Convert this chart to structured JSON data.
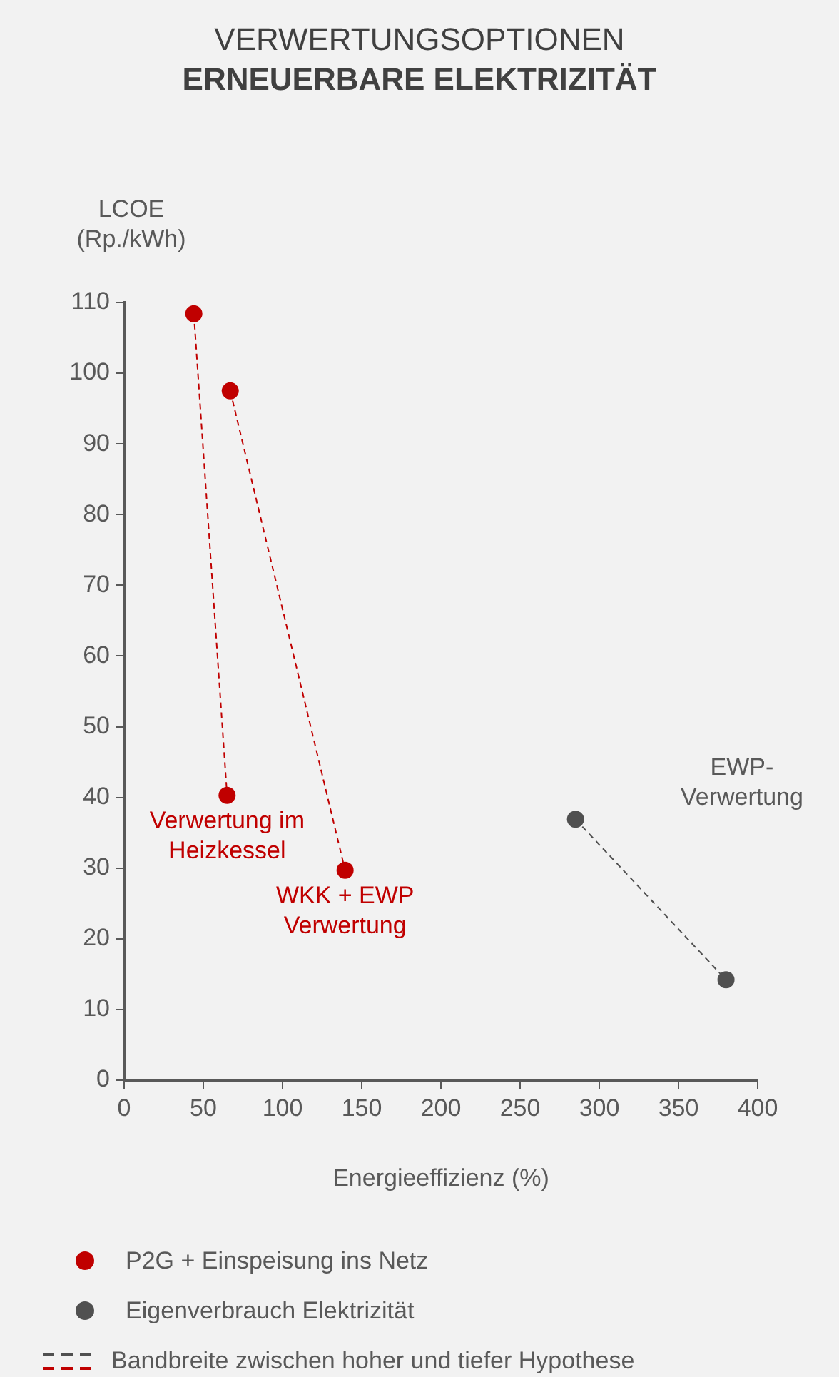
{
  "chart_data": {
    "type": "line",
    "title": "VERWERTUNGSOPTIONEN",
    "subtitle": "ERNEUERBARE ELEKTRIZITÄT",
    "xlabel": "Energieeffizienz (%)",
    "ylabel": "LCOE\n(Rp./kWh)",
    "xlim": [
      0,
      400
    ],
    "xticks": [
      0,
      50,
      100,
      150,
      200,
      250,
      300,
      350,
      400
    ],
    "ylim": [
      0,
      110
    ],
    "yticks": [
      0,
      10,
      20,
      30,
      40,
      50,
      60,
      70,
      80,
      90,
      100,
      110
    ],
    "series": [
      {
        "name": "P2G + Einspeisung ins Netz",
        "color": "#c00000",
        "x": [
          44,
          65,
          66,
          67,
          139.5
        ],
        "values": [
          108.4,
          40.3,
          null,
          97.5,
          29.7
        ],
        "marker": "circle",
        "line_style": "dashed"
      },
      {
        "name": "Eigenverbrauch Elektrizität",
        "color": "#505050",
        "x": [
          285,
          380
        ],
        "values": [
          36.9,
          14.2
        ],
        "marker": "circle",
        "line_style": "dashed"
      }
    ],
    "annotations": [
      {
        "text": "Verwertung im\nHeizkessel",
        "x": 65,
        "y": 40.3
      },
      {
        "text": "WKK + EWP\nVerwertung",
        "x": 139.5,
        "y": 29.7
      },
      "EWP-\nVerwertung",
      "Bandbreite zwischen hoher und tiefer Hypothese"
    ],
    "legend": "bottom"
  }
}
